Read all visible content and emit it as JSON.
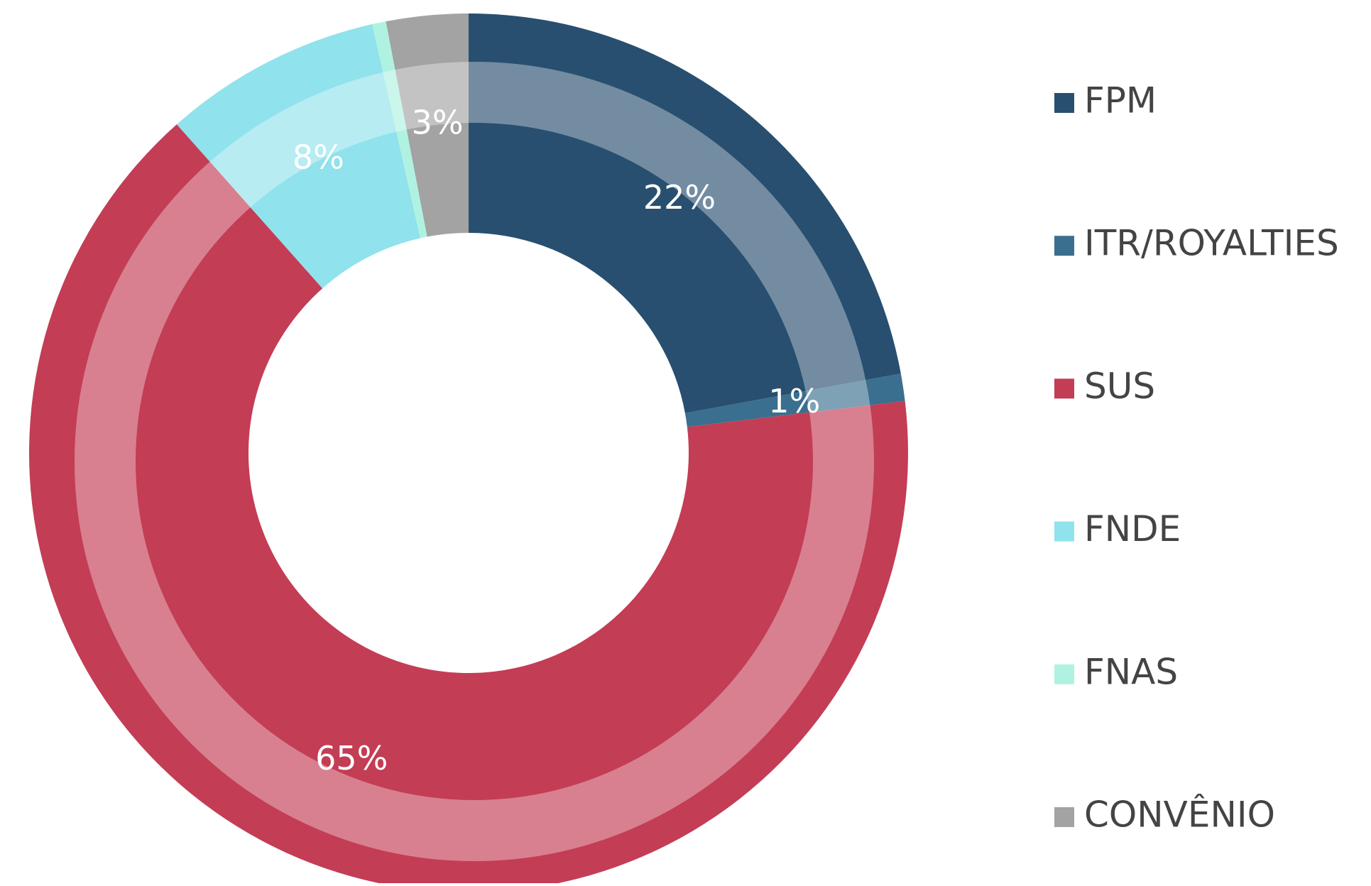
{
  "chart_data": {
    "type": "donut",
    "categories": [
      "FPM",
      "ITR/ROYALTIES",
      "SUS",
      "FNDE",
      "FNAS",
      "CONVÊNIO"
    ],
    "values": [
      22,
      1,
      65,
      8,
      0.5,
      3
    ],
    "value_labels": [
      "22%",
      "1%",
      "65%",
      "8%",
      null,
      "3%"
    ],
    "colors": [
      "#284f6f",
      "#3a6f8f",
      "#c33d55",
      "#90e2ec",
      "#b0f2e2",
      "#a3a3a3"
    ],
    "legend": "right"
  }
}
